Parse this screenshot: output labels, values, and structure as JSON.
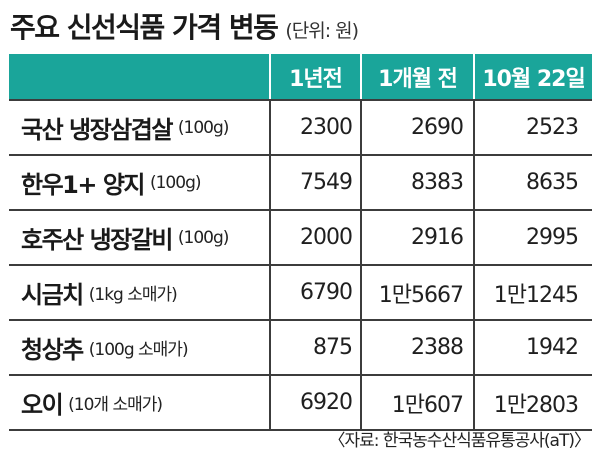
{
  "title": "주요 신선식품 가격 변동",
  "unit": "(단위: 원)",
  "source": "〈자료: 한국농수산식품유통공사(aT)〉",
  "chart_data": {
    "type": "table",
    "columns": [
      "1년전",
      "1개월 전",
      "10월 22일"
    ],
    "rows": [
      {
        "name": "국산 냉장삼겹살",
        "spec": "(100g)",
        "values": [
          "2300",
          "2690",
          "2523"
        ]
      },
      {
        "name": "한우1+ 양지",
        "spec": "(100g)",
        "values": [
          "7549",
          "8383",
          "8635"
        ]
      },
      {
        "name": "호주산 냉장갈비",
        "spec": "(100g)",
        "values": [
          "2000",
          "2916",
          "2995"
        ]
      },
      {
        "name": "시금치",
        "spec": "(1kg 소매가)",
        "values": [
          "6790",
          "1만5667",
          "1만1245"
        ]
      },
      {
        "name": "청상추",
        "spec": "(100g 소매가)",
        "values": [
          "875",
          "2388",
          "1942"
        ]
      },
      {
        "name": "오이",
        "spec": "(10개 소매가)",
        "values": [
          "6920",
          "1만607",
          "1만2803"
        ]
      }
    ]
  },
  "colors": {
    "header_bg": "#1aa59a",
    "header_text": "#ffffff",
    "rule": "#3c3c3c"
  }
}
